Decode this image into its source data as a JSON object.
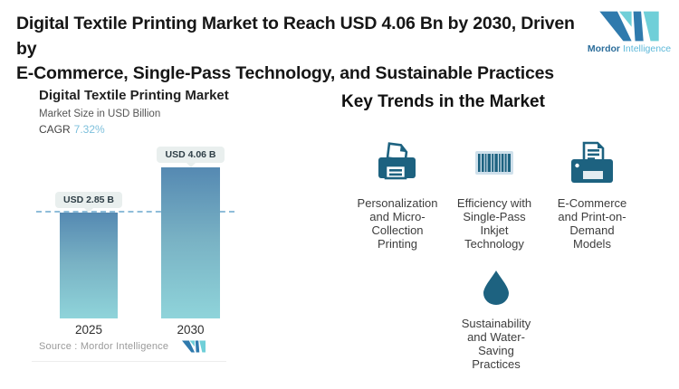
{
  "header": {
    "title": "Digital Textile Printing Market to Reach USD 4.06 Bn by 2030, Driven by\nE-Commerce, Single-Pass Technology, and Sustainable Practices",
    "brand": {
      "name_bold": "Mordor",
      "name_light": "Intelligence"
    }
  },
  "chart_card": {
    "title": "Digital Textile Printing Market",
    "subtitle": "Market Size in USD Billion",
    "cagr_label": "CAGR",
    "cagr_value": "7.32%",
    "source_text": "Source : Mordor Intelligence"
  },
  "chart_data": {
    "type": "bar",
    "title": "Digital Textile Printing Market",
    "ylabel": "Market Size in USD Billion",
    "unit": "USD Billion",
    "cagr_percent": 7.32,
    "categories": [
      "2025",
      "2030"
    ],
    "values": [
      2.85,
      4.06
    ],
    "value_labels": [
      "USD 2.85 B",
      "USD 4.06 B"
    ],
    "baseline_marker_at": 2.85,
    "ylim": [
      0,
      4.5
    ],
    "grid": false,
    "legend": "none"
  },
  "trends": {
    "heading": "Key Trends in the Market",
    "items": [
      {
        "icon": "printer-icon",
        "label": "Personalization\nand Micro-\nCollection\nPrinting"
      },
      {
        "icon": "barcode-icon",
        "label": "Efficiency with\nSingle-Pass\nInkjet\nTechnology"
      },
      {
        "icon": "ecommerce-printer-icon",
        "label": "E-Commerce\nand Print-on-\nDemand\nModels"
      },
      {
        "icon": "water-drop-icon",
        "label": "Sustainability\nand Water-\nSaving\nPractices"
      }
    ]
  },
  "colors": {
    "icon_teal": "#1d6280",
    "cagr_blue": "#7ec0dc",
    "dashed_line": "#8fbdd9",
    "bar_gradient_top": "#5589b2",
    "bar_gradient_bottom": "#8fd4da",
    "logo_dark_blue": "#2f7aad",
    "logo_teal": "#6fcfd8"
  }
}
